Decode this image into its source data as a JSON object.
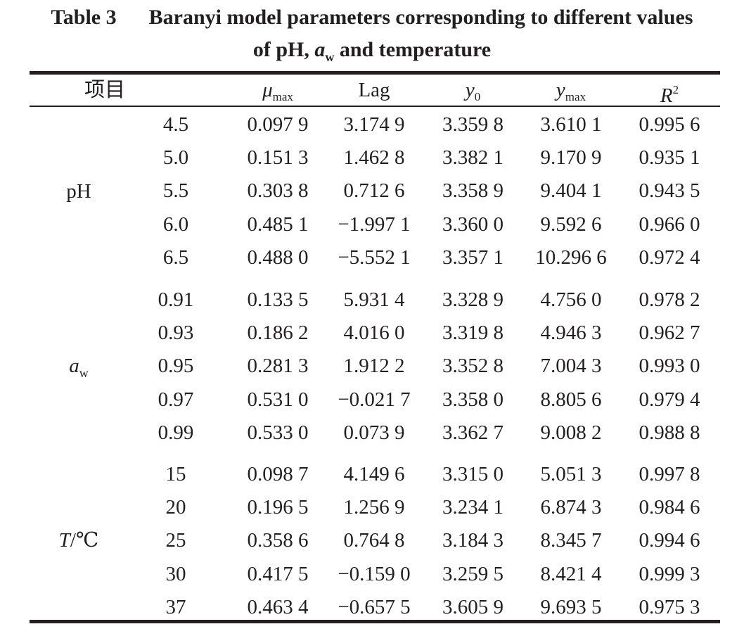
{
  "caption": {
    "label": "Table 3",
    "line1": "Baranyi model parameters corresponding to different values",
    "line2_prefix": "of pH, ",
    "line2_aw_base": "a",
    "line2_aw_sub": "w",
    "line2_suffix": " and temperature"
  },
  "headers": {
    "item": "项目",
    "mu_base": "μ",
    "mu_sub": "max",
    "lag": "Lag",
    "y0_base": "y",
    "y0_sub": "0",
    "ymax_base": "y",
    "ymax_sub": "max",
    "r2_base": "R",
    "r2_sup": "2"
  },
  "groups": [
    {
      "label": "pH",
      "label_italic": false,
      "rows": [
        {
          "level": "4.5",
          "mu": "0.097 9",
          "lag": "3.174 9",
          "y0": "3.359 8",
          "ymax": "3.610 1",
          "r2": "0.995 6"
        },
        {
          "level": "5.0",
          "mu": "0.151 3",
          "lag": "1.462 8",
          "y0": "3.382 1",
          "ymax": "9.170 9",
          "r2": "0.935 1"
        },
        {
          "level": "5.5",
          "mu": "0.303 8",
          "lag": "0.712 6",
          "y0": "3.358 9",
          "ymax": "9.404 1",
          "r2": "0.943 5"
        },
        {
          "level": "6.0",
          "mu": "0.485 1",
          "lag": "−1.997 1",
          "y0": "3.360 0",
          "ymax": "9.592 6",
          "r2": "0.966 0"
        },
        {
          "level": "6.5",
          "mu": "0.488 0",
          "lag": "−5.552 1",
          "y0": "3.357 1",
          "ymax": "10.296 6",
          "r2": "0.972 4"
        }
      ]
    },
    {
      "label": "a",
      "label_sub": "w",
      "label_italic": true,
      "rows": [
        {
          "level": "0.91",
          "mu": "0.133 5",
          "lag": "5.931 4",
          "y0": "3.328 9",
          "ymax": "4.756 0",
          "r2": "0.978 2"
        },
        {
          "level": "0.93",
          "mu": "0.186 2",
          "lag": "4.016 0",
          "y0": "3.319 8",
          "ymax": "4.946 3",
          "r2": "0.962 7"
        },
        {
          "level": "0.95",
          "mu": "0.281 3",
          "lag": "1.912 2",
          "y0": "3.352 8",
          "ymax": "7.004 3",
          "r2": "0.993 0"
        },
        {
          "level": "0.97",
          "mu": "0.531 0",
          "lag": "−0.021 7",
          "y0": "3.358 0",
          "ymax": "8.805 6",
          "r2": "0.979 4"
        },
        {
          "level": "0.99",
          "mu": "0.533 0",
          "lag": "0.073 9",
          "y0": "3.362 7",
          "ymax": "9.008 2",
          "r2": "0.988 8"
        }
      ]
    },
    {
      "label": "T",
      "label_suffix": "/℃",
      "label_italic": true,
      "rows": [
        {
          "level": "15",
          "mu": "0.098 7",
          "lag": "4.149 6",
          "y0": "3.315 0",
          "ymax": "5.051 3",
          "r2": "0.997 8"
        },
        {
          "level": "20",
          "mu": "0.196 5",
          "lag": "1.256 9",
          "y0": "3.234 1",
          "ymax": "6.874 3",
          "r2": "0.984 6"
        },
        {
          "level": "25",
          "mu": "0.358 6",
          "lag": "0.764 8",
          "y0": "3.184 3",
          "ymax": "8.345 7",
          "r2": "0.994 6"
        },
        {
          "level": "30",
          "mu": "0.417 5",
          "lag": "−0.159 0",
          "y0": "3.259 5",
          "ymax": "8.421 4",
          "r2": "0.999 3"
        },
        {
          "level": "37",
          "mu": "0.463 4",
          "lag": "−0.657 5",
          "y0": "3.605 9",
          "ymax": "9.693 5",
          "r2": "0.975 3"
        }
      ]
    }
  ]
}
